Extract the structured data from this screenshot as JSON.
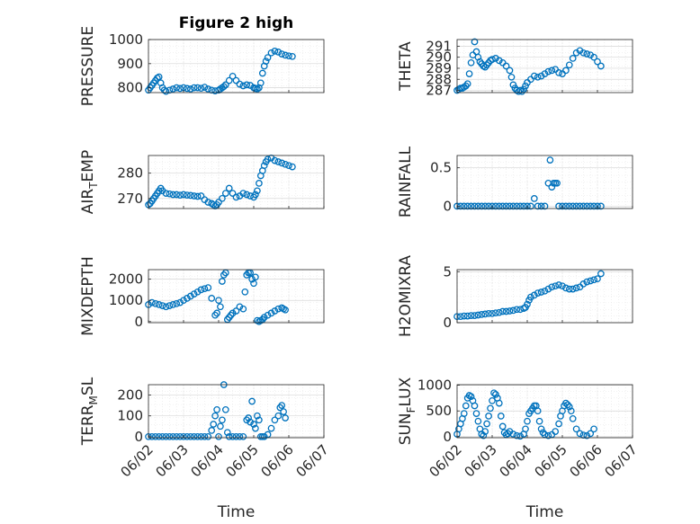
{
  "figure": {
    "title": "Figure 2 high",
    "marker_color": "#0072BD",
    "x_tick_labels": [
      "06/02",
      "06/03",
      "06/04",
      "06/05",
      "06/06",
      "06/07"
    ],
    "x_label": "Time"
  },
  "chart_data": [
    {
      "type": "scatter",
      "ylabel": "PRESSURE",
      "ylabel_sub": null,
      "title": "Figure 2 high",
      "xlabel": "",
      "xlim": [
        0,
        5
      ],
      "ylim": [
        780,
        1000
      ],
      "yticks": [
        800,
        900,
        1000
      ],
      "grid": true,
      "series": [
        {
          "x": [
            0.0,
            0.05,
            0.1,
            0.15,
            0.2,
            0.25,
            0.3,
            0.35,
            0.4,
            0.45,
            0.5,
            0.6,
            0.7,
            0.8,
            0.9,
            1.0,
            1.1,
            1.2,
            1.3,
            1.4,
            1.5,
            1.6,
            1.7,
            1.8,
            1.9,
            2.0,
            2.05,
            2.1,
            2.15,
            2.2,
            2.3,
            2.4,
            2.5,
            2.6,
            2.7,
            2.8,
            2.9,
            3.0,
            3.05,
            3.1,
            3.15,
            3.2,
            3.25,
            3.3,
            3.35,
            3.4,
            3.5,
            3.6,
            3.7,
            3.8,
            3.9,
            4.0,
            4.1
          ],
          "y": [
            790,
            800,
            810,
            820,
            830,
            840,
            845,
            820,
            800,
            790,
            785,
            790,
            795,
            800,
            797,
            800,
            797,
            795,
            800,
            800,
            798,
            802,
            795,
            790,
            787,
            790,
            795,
            800,
            805,
            812,
            830,
            848,
            830,
            815,
            808,
            812,
            810,
            800,
            797,
            795,
            800,
            820,
            860,
            890,
            910,
            925,
            945,
            952,
            948,
            940,
            935,
            932,
            930
          ]
        }
      ]
    },
    {
      "type": "scatter",
      "ylabel": "THETA",
      "ylabel_sub": null,
      "xlabel": "",
      "xlim": [
        0,
        5
      ],
      "ylim": [
        286.8,
        291.6
      ],
      "yticks": [
        287,
        288,
        289,
        290,
        291
      ],
      "grid": true,
      "series": [
        {
          "x": [
            0.0,
            0.05,
            0.1,
            0.15,
            0.2,
            0.25,
            0.3,
            0.35,
            0.4,
            0.45,
            0.5,
            0.55,
            0.6,
            0.65,
            0.7,
            0.75,
            0.8,
            0.85,
            0.9,
            0.95,
            1.0,
            1.1,
            1.2,
            1.3,
            1.4,
            1.5,
            1.55,
            1.6,
            1.65,
            1.7,
            1.75,
            1.8,
            1.85,
            1.9,
            1.95,
            2.0,
            2.1,
            2.2,
            2.3,
            2.4,
            2.5,
            2.6,
            2.7,
            2.8,
            2.9,
            3.0,
            3.1,
            3.2,
            3.3,
            3.4,
            3.5,
            3.6,
            3.7,
            3.8,
            3.9,
            4.0,
            4.1
          ],
          "y": [
            287.0,
            287.1,
            287.2,
            287.2,
            287.3,
            287.4,
            287.6,
            288.5,
            289.5,
            290.2,
            291.4,
            290.5,
            290.0,
            289.6,
            289.4,
            289.2,
            289.1,
            289.3,
            289.5,
            289.7,
            289.8,
            289.9,
            289.7,
            289.5,
            289.2,
            288.8,
            288.2,
            287.5,
            287.2,
            287.0,
            286.9,
            287.0,
            286.9,
            287.1,
            287.4,
            287.7,
            288.0,
            288.3,
            288.2,
            288.3,
            288.5,
            288.7,
            288.8,
            288.9,
            288.6,
            288.5,
            288.8,
            289.3,
            289.9,
            290.4,
            290.6,
            290.4,
            290.3,
            290.2,
            290.0,
            289.6,
            289.2
          ]
        }
      ]
    },
    {
      "type": "scatter",
      "ylabel": "AIR",
      "ylabel_sub": "T",
      "ylabel_tail": "EMP",
      "xlabel": "",
      "xlim": [
        0,
        5
      ],
      "ylim": [
        266,
        287
      ],
      "yticks": [
        270,
        280
      ],
      "grid": true,
      "series": [
        {
          "x": [
            0.0,
            0.05,
            0.1,
            0.15,
            0.2,
            0.25,
            0.3,
            0.35,
            0.4,
            0.5,
            0.6,
            0.7,
            0.8,
            0.9,
            1.0,
            1.1,
            1.2,
            1.3,
            1.4,
            1.5,
            1.6,
            1.7,
            1.8,
            1.85,
            1.9,
            1.95,
            2.0,
            2.1,
            2.2,
            2.3,
            2.4,
            2.5,
            2.6,
            2.7,
            2.8,
            2.9,
            3.0,
            3.05,
            3.1,
            3.15,
            3.2,
            3.25,
            3.3,
            3.35,
            3.4,
            3.5,
            3.6,
            3.7,
            3.8,
            3.9,
            4.0,
            4.1
          ],
          "y": [
            267.5,
            268.0,
            269.0,
            270.0,
            271.0,
            272.0,
            273.0,
            274.0,
            273.0,
            272.0,
            271.8,
            271.5,
            271.5,
            271.3,
            271.5,
            271.3,
            271.2,
            271.0,
            270.8,
            271.0,
            269.5,
            268.5,
            268.0,
            267.5,
            267.0,
            267.5,
            268.5,
            270.0,
            272.0,
            274.0,
            272.0,
            270.5,
            271.0,
            272.0,
            271.5,
            271.0,
            270.5,
            271.5,
            273.0,
            276.0,
            279.0,
            281.0,
            283.0,
            284.5,
            285.5,
            286.0,
            285.0,
            284.5,
            284.0,
            283.5,
            283.0,
            282.5
          ]
        }
      ]
    },
    {
      "type": "scatter",
      "ylabel": "RAINFALL",
      "ylabel_sub": null,
      "xlabel": "",
      "xlim": [
        0,
        5
      ],
      "ylim": [
        -0.03,
        0.66
      ],
      "yticks": [
        0,
        0.5
      ],
      "ytick_labels": [
        "0",
        "0.5"
      ],
      "grid": true,
      "series": [
        {
          "x": [
            0.0,
            0.1,
            0.2,
            0.3,
            0.4,
            0.5,
            0.6,
            0.7,
            0.8,
            0.9,
            1.0,
            1.1,
            1.2,
            1.3,
            1.4,
            1.5,
            1.6,
            1.7,
            1.8,
            1.9,
            2.0,
            2.1,
            2.2,
            2.3,
            2.4,
            2.5,
            2.6,
            2.65,
            2.7,
            2.75,
            2.8,
            2.85,
            2.9,
            3.0,
            3.1,
            3.2,
            3.3,
            3.4,
            3.5,
            3.6,
            3.7,
            3.8,
            3.9,
            4.0,
            4.1
          ],
          "y": [
            0,
            0,
            0,
            0,
            0,
            0,
            0,
            0,
            0,
            0,
            0,
            0,
            0,
            0,
            0,
            0,
            0,
            0,
            0,
            0,
            0,
            0,
            0.1,
            0,
            0,
            0,
            0.3,
            0.6,
            0.25,
            0.3,
            0.3,
            0.3,
            0,
            0,
            0,
            0,
            0,
            0,
            0,
            0,
            0,
            0,
            0,
            0,
            0
          ]
        }
      ]
    },
    {
      "type": "scatter",
      "ylabel": "MIXDEPTH",
      "ylabel_sub": null,
      "xlabel": "",
      "xlim": [
        0,
        5
      ],
      "ylim": [
        -50,
        2450
      ],
      "yticks": [
        0,
        1000,
        2000
      ],
      "grid": true,
      "series": [
        {
          "x": [
            0.0,
            0.1,
            0.2,
            0.3,
            0.4,
            0.5,
            0.6,
            0.7,
            0.8,
            0.9,
            1.0,
            1.1,
            1.2,
            1.3,
            1.4,
            1.5,
            1.6,
            1.7,
            1.8,
            1.9,
            1.95,
            2.0,
            2.05,
            2.1,
            2.15,
            2.2,
            2.25,
            2.3,
            2.35,
            2.4,
            2.5,
            2.6,
            2.7,
            2.75,
            2.8,
            2.85,
            2.9,
            2.95,
            3.0,
            3.05,
            3.1,
            3.15,
            3.2,
            3.25,
            3.3,
            3.4,
            3.5,
            3.6,
            3.7,
            3.8,
            3.85,
            3.9
          ],
          "y": [
            800,
            900,
            850,
            800,
            750,
            700,
            750,
            800,
            850,
            900,
            1000,
            1100,
            1200,
            1300,
            1400,
            1500,
            1550,
            1600,
            1100,
            300,
            400,
            1000,
            700,
            1900,
            2200,
            2300,
            100,
            200,
            300,
            400,
            500,
            700,
            600,
            1400,
            2200,
            2300,
            2300,
            2000,
            1800,
            2100,
            50,
            0,
            50,
            100,
            200,
            300,
            400,
            500,
            600,
            650,
            600,
            550
          ]
        }
      ]
    },
    {
      "type": "scatter",
      "ylabel": "H2OMIXRA",
      "ylabel_sub": null,
      "xlabel": "",
      "xlim": [
        0,
        5
      ],
      "ylim": [
        0,
        5.2
      ],
      "yticks": [
        0,
        5
      ],
      "grid": true,
      "series": [
        {
          "x": [
            0.0,
            0.1,
            0.2,
            0.3,
            0.4,
            0.5,
            0.6,
            0.7,
            0.8,
            0.9,
            1.0,
            1.1,
            1.2,
            1.3,
            1.4,
            1.5,
            1.6,
            1.7,
            1.8,
            1.9,
            1.95,
            2.0,
            2.05,
            2.1,
            2.2,
            2.3,
            2.4,
            2.5,
            2.6,
            2.7,
            2.8,
            2.9,
            3.0,
            3.1,
            3.2,
            3.3,
            3.4,
            3.5,
            3.6,
            3.7,
            3.8,
            3.9,
            4.0,
            4.1
          ],
          "y": [
            0.6,
            0.6,
            0.65,
            0.65,
            0.7,
            0.7,
            0.75,
            0.8,
            0.85,
            0.9,
            0.9,
            0.95,
            1.0,
            1.1,
            1.1,
            1.15,
            1.2,
            1.3,
            1.3,
            1.4,
            1.5,
            1.8,
            2.2,
            2.5,
            2.7,
            2.9,
            3.0,
            3.1,
            3.3,
            3.5,
            3.6,
            3.7,
            3.6,
            3.4,
            3.3,
            3.3,
            3.4,
            3.5,
            3.8,
            4.0,
            4.1,
            4.2,
            4.3,
            4.8
          ]
        }
      ]
    },
    {
      "type": "scatter",
      "ylabel": "TERR",
      "ylabel_sub": "M",
      "ylabel_tail": "SL",
      "xlabel": "Time",
      "xlim": [
        0,
        5
      ],
      "ylim": [
        -5,
        250
      ],
      "yticks": [
        0,
        100,
        200
      ],
      "grid": true,
      "series": [
        {
          "x": [
            0.0,
            0.1,
            0.2,
            0.3,
            0.4,
            0.5,
            0.6,
            0.7,
            0.8,
            0.9,
            1.0,
            1.1,
            1.2,
            1.3,
            1.4,
            1.5,
            1.6,
            1.7,
            1.8,
            1.85,
            1.9,
            1.95,
            2.0,
            2.05,
            2.1,
            2.15,
            2.2,
            2.25,
            2.3,
            2.4,
            2.5,
            2.6,
            2.7,
            2.8,
            2.85,
            2.9,
            2.95,
            3.0,
            3.05,
            3.1,
            3.15,
            3.2,
            3.25,
            3.3,
            3.4,
            3.5,
            3.6,
            3.7,
            3.75,
            3.8,
            3.85,
            3.9
          ],
          "y": [
            0,
            0,
            0,
            0,
            0,
            0,
            0,
            0,
            0,
            0,
            0,
            0,
            0,
            0,
            0,
            0,
            0,
            0,
            30,
            60,
            100,
            130,
            0,
            50,
            80,
            250,
            130,
            20,
            0,
            0,
            0,
            0,
            0,
            80,
            90,
            70,
            170,
            60,
            40,
            100,
            80,
            0,
            0,
            0,
            10,
            40,
            80,
            100,
            140,
            150,
            120,
            90
          ]
        }
      ]
    },
    {
      "type": "scatter",
      "ylabel": "SUN",
      "ylabel_sub": "F",
      "ylabel_tail": "LUX",
      "xlabel": "Time",
      "xlim": [
        0,
        5
      ],
      "ylim": [
        -20,
        1010
      ],
      "yticks": [
        0,
        500,
        1000
      ],
      "grid": true,
      "series": [
        {
          "x": [
            0.0,
            0.05,
            0.1,
            0.15,
            0.2,
            0.25,
            0.3,
            0.35,
            0.4,
            0.45,
            0.5,
            0.55,
            0.6,
            0.65,
            0.7,
            0.75,
            0.8,
            0.85,
            0.9,
            0.95,
            1.0,
            1.05,
            1.1,
            1.15,
            1.2,
            1.25,
            1.3,
            1.35,
            1.4,
            1.45,
            1.5,
            1.6,
            1.7,
            1.8,
            1.9,
            1.95,
            2.0,
            2.05,
            2.1,
            2.15,
            2.2,
            2.25,
            2.3,
            2.35,
            2.4,
            2.45,
            2.5,
            2.6,
            2.7,
            2.8,
            2.9,
            2.95,
            3.0,
            3.05,
            3.1,
            3.15,
            3.2,
            3.25,
            3.3,
            3.4,
            3.5,
            3.6,
            3.7,
            3.8,
            3.9
          ],
          "y": [
            50,
            150,
            250,
            350,
            450,
            600,
            750,
            800,
            780,
            700,
            600,
            450,
            300,
            150,
            50,
            20,
            100,
            250,
            400,
            550,
            700,
            850,
            820,
            750,
            650,
            400,
            200,
            80,
            40,
            60,
            100,
            50,
            20,
            10,
            50,
            150,
            300,
            450,
            500,
            550,
            600,
            600,
            500,
            300,
            150,
            80,
            40,
            20,
            40,
            100,
            250,
            400,
            500,
            600,
            650,
            620,
            580,
            500,
            350,
            150,
            60,
            30,
            20,
            60,
            150
          ]
        }
      ]
    }
  ]
}
